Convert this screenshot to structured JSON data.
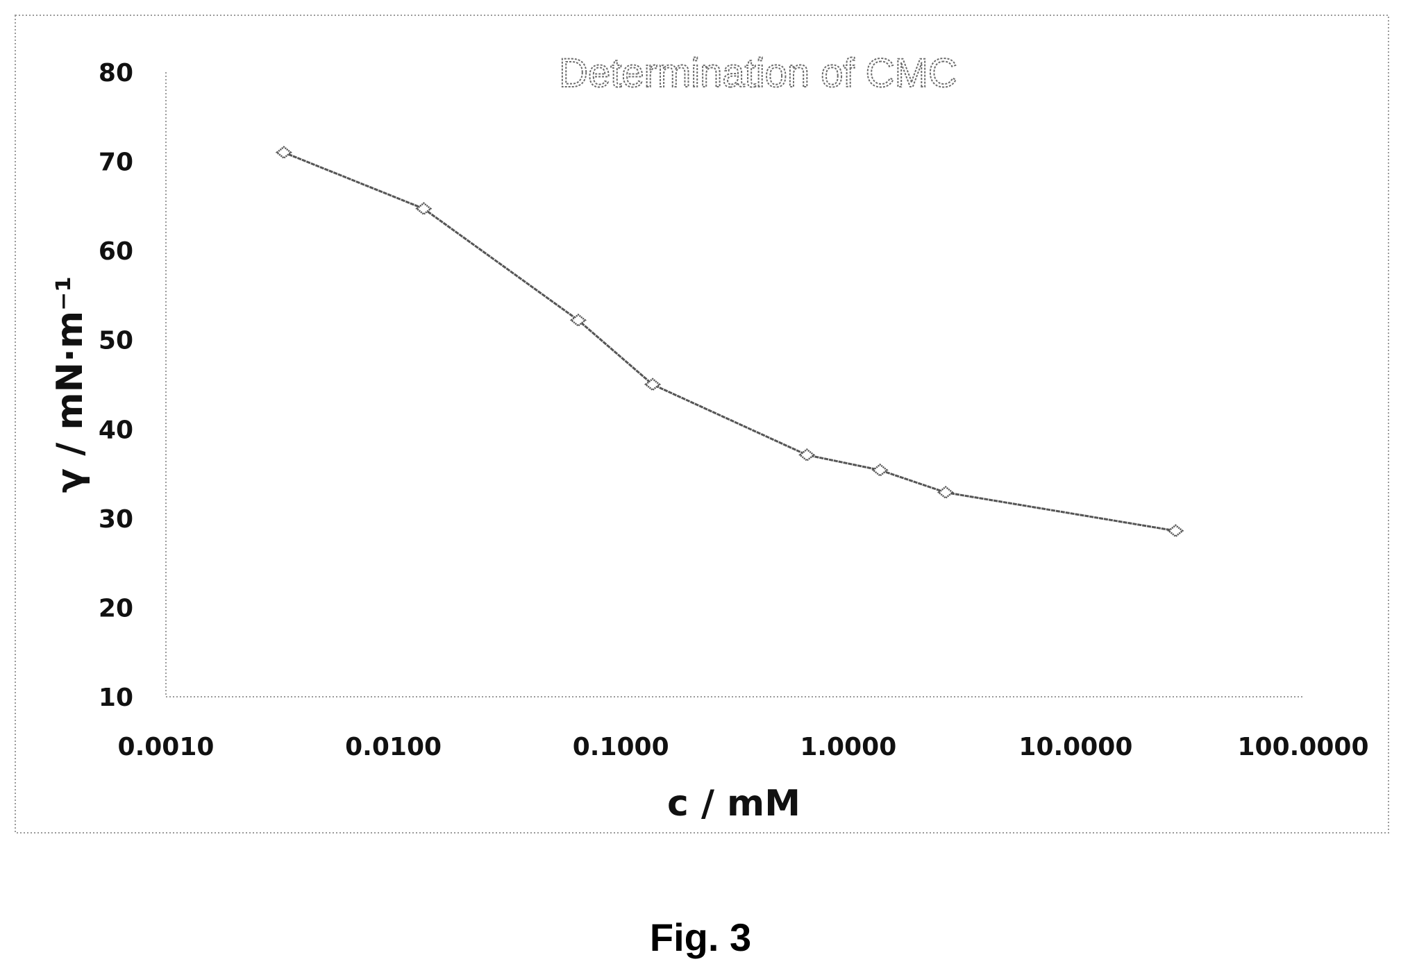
{
  "chart_data": {
    "type": "line",
    "title": "Determination of CMC",
    "xlabel": "c / mM",
    "ylabel": "γ / mN·m⁻¹",
    "x_scale": "log",
    "xlim": [
      0.001,
      100
    ],
    "ylim": [
      10,
      80
    ],
    "x_ticks": [
      "0.0010",
      "0.0100",
      "0.1000",
      "1.0000",
      "10.0000",
      "100.0000"
    ],
    "y_ticks": [
      "10",
      "20",
      "30",
      "40",
      "50",
      "60",
      "70",
      "80"
    ],
    "grid": false,
    "legend": "none",
    "series": [
      {
        "x": [
          0.0033,
          0.0136,
          0.065,
          0.138,
          0.658,
          1.38,
          2.68,
          27.5
        ],
        "y": [
          71.0,
          64.7,
          52.2,
          45.0,
          37.1,
          35.4,
          32.9,
          28.6
        ]
      }
    ]
  },
  "figure": {
    "caption": "Fig. 3"
  },
  "colors": {
    "line": "#555555",
    "frame": "#9a9a9a",
    "text": "#111111"
  }
}
